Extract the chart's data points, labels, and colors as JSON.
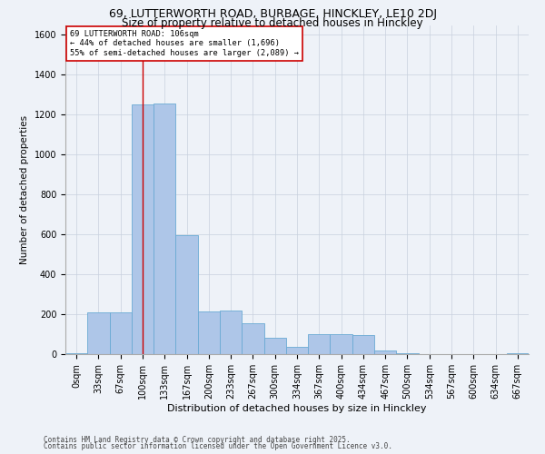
{
  "title1": "69, LUTTERWORTH ROAD, BURBAGE, HINCKLEY, LE10 2DJ",
  "title2": "Size of property relative to detached houses in Hinckley",
  "xlabel": "Distribution of detached houses by size in Hinckley",
  "ylabel": "Number of detached properties",
  "categories": [
    "0sqm",
    "33sqm",
    "67sqm",
    "100sqm",
    "133sqm",
    "167sqm",
    "200sqm",
    "233sqm",
    "267sqm",
    "300sqm",
    "334sqm",
    "367sqm",
    "400sqm",
    "434sqm",
    "467sqm",
    "500sqm",
    "534sqm",
    "567sqm",
    "600sqm",
    "634sqm",
    "667sqm"
  ],
  "values": [
    5,
    210,
    210,
    1250,
    1255,
    595,
    215,
    220,
    155,
    80,
    35,
    100,
    100,
    95,
    20,
    5,
    0,
    0,
    0,
    0,
    5
  ],
  "bar_color": "#aec6e8",
  "bar_edge_color": "#6aaad4",
  "vline_x": 3.0,
  "vline_color": "#cc0000",
  "annotation_text": "69 LUTTERWORTH ROAD: 106sqm\n← 44% of detached houses are smaller (1,696)\n55% of semi-detached houses are larger (2,089) →",
  "annotation_box_color": "#cc0000",
  "footnote1": "Contains HM Land Registry data © Crown copyright and database right 2025.",
  "footnote2": "Contains public sector information licensed under the Open Government Licence v3.0.",
  "background_color": "#eef2f8",
  "plot_bg_color": "#eef2f8",
  "ylim": [
    0,
    1650
  ],
  "yticks": [
    0,
    200,
    400,
    600,
    800,
    1000,
    1200,
    1400,
    1600
  ],
  "title_fontsize": 9,
  "subtitle_fontsize": 8.5,
  "tick_fontsize": 7,
  "ylabel_fontsize": 7.5,
  "xlabel_fontsize": 8,
  "annot_fontsize": 6.2,
  "footnote_fontsize": 5.5
}
